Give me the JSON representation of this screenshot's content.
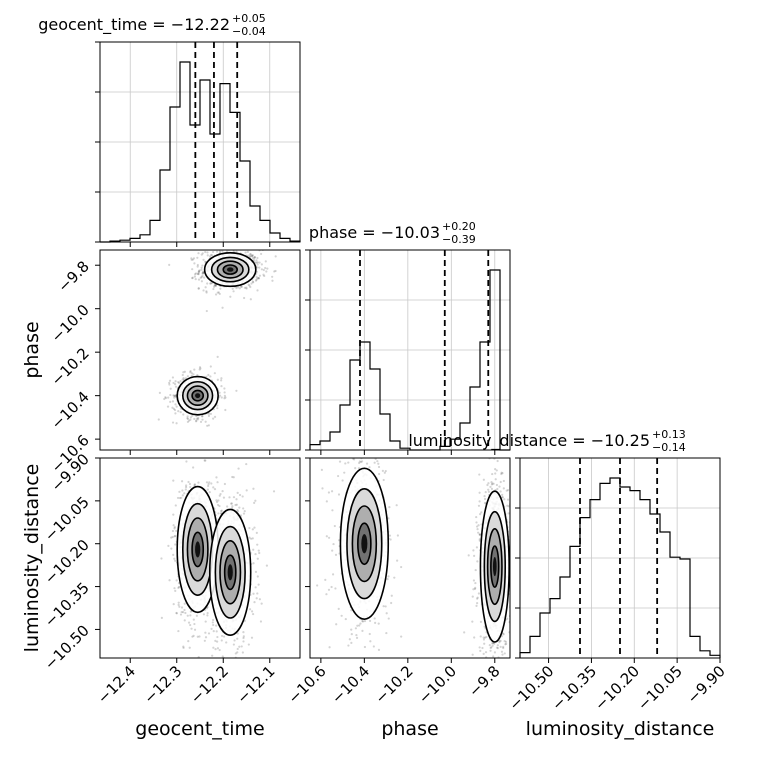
{
  "chart_data": {
    "type": "corner",
    "parameters": [
      "geocent_time",
      "phase",
      "luminosity_distance"
    ],
    "titles": [
      {
        "name": "geocent_time",
        "median": "−12.22",
        "plus": "+0.05",
        "minus": "−0.04"
      },
      {
        "name": "phase",
        "median": "−10.03",
        "plus": "+0.20",
        "minus": "−0.39"
      },
      {
        "name": "luminosity_distance",
        "median": "−10.25",
        "plus": "+0.13",
        "minus": "−0.14"
      }
    ],
    "ranges": {
      "geocent_time": [
        -12.465,
        -12.035
      ],
      "phase": [
        -10.65,
        -9.73
      ],
      "luminosity_distance": [
        -10.6,
        -9.9
      ]
    },
    "ticks": {
      "geocent_time": {
        "values": [
          -12.4,
          -12.3,
          -12.2,
          -12.1
        ],
        "labels": [
          "−12.4",
          "−12.3",
          "−12.2",
          "−12.1"
        ]
      },
      "phase": {
        "values": [
          -10.6,
          -10.4,
          -10.2,
          -10.0,
          -9.8
        ],
        "labels": [
          "−10.6",
          "−10.4",
          "−10.2",
          "−10.0",
          "−9.8"
        ]
      },
      "luminosity_distance": {
        "values": [
          -10.5,
          -10.35,
          -10.2,
          -10.05,
          -9.9
        ],
        "labels": [
          "−10.50",
          "−10.35",
          "−10.20",
          "−10.05",
          "−9.90"
        ]
      }
    },
    "quantiles": {
      "geocent_time": [
        -12.26,
        -12.22,
        -12.17
      ],
      "phase": [
        -10.42,
        -10.03,
        -9.83
      ],
      "luminosity_distance": [
        -10.39,
        -10.25,
        -10.12
      ]
    },
    "histograms": {
      "geocent_time": {
        "edges": [
          -12.465,
          -12.4435,
          -12.422,
          -12.4005,
          -12.379,
          -12.3575,
          -12.336,
          -12.3145,
          -12.293,
          -12.2715,
          -12.25,
          -12.2285,
          -12.207,
          -12.1855,
          -12.164,
          -12.1425,
          -12.121,
          -12.0995,
          -12.078,
          -12.0565,
          -12.035
        ],
        "counts": [
          0,
          0.005,
          0.01,
          0.02,
          0.04,
          0.12,
          0.4,
          0.75,
          1.0,
          0.65,
          0.9,
          0.6,
          0.88,
          0.72,
          0.45,
          0.2,
          0.12,
          0.05,
          0.02,
          0.005
        ]
      },
      "phase": {
        "edges": [
          -10.65,
          -10.604,
          -10.558,
          -10.512,
          -10.466,
          -10.42,
          -10.374,
          -10.328,
          -10.282,
          -10.236,
          -10.19,
          -10.144,
          -10.098,
          -10.052,
          -10.006,
          -9.96,
          -9.914,
          -9.868,
          -9.822,
          -9.776,
          -9.73
        ],
        "counts": [
          0.03,
          0.05,
          0.1,
          0.25,
          0.5,
          0.6,
          0.45,
          0.2,
          0.05,
          0.01,
          0,
          0,
          0,
          0.02,
          0.06,
          0.15,
          0.35,
          0.6,
          1.0,
          0
        ]
      },
      "luminosity_distance": {
        "edges": [
          -10.6,
          -10.565,
          -10.53,
          -10.495,
          -10.46,
          -10.425,
          -10.39,
          -10.355,
          -10.32,
          -10.285,
          -10.25,
          -10.215,
          -10.18,
          -10.145,
          -10.11,
          -10.075,
          -10.04,
          -10.005,
          -9.97,
          -9.935,
          -9.9
        ],
        "counts": [
          0.03,
          0.12,
          0.25,
          0.33,
          0.45,
          0.62,
          0.78,
          0.88,
          0.97,
          1.0,
          0.95,
          0.93,
          0.88,
          0.8,
          0.7,
          0.56,
          0.55,
          0.12,
          0.04,
          0.015
        ]
      }
    },
    "clusters": [
      {
        "x": "geocent_time",
        "y": "phase",
        "modes": [
          {
            "cx": -12.185,
            "cy": -9.82,
            "sx": 0.025,
            "sy": 0.035,
            "w": 0.6
          },
          {
            "cx": -12.255,
            "cy": -10.4,
            "sx": 0.02,
            "sy": 0.04,
            "w": 0.4
          }
        ]
      },
      {
        "x": "geocent_time",
        "y": "luminosity_distance",
        "modes": [
          {
            "cx": -12.255,
            "cy": -10.22,
            "sx": 0.02,
            "sy": 0.1,
            "w": 0.5
          },
          {
            "cx": -12.185,
            "cy": -10.3,
            "sx": 0.02,
            "sy": 0.1,
            "w": 0.5
          }
        ]
      },
      {
        "x": "phase",
        "y": "luminosity_distance",
        "modes": [
          {
            "cx": -10.4,
            "cy": -10.2,
            "sx": 0.05,
            "sy": 0.12,
            "w": 0.4
          },
          {
            "cx": -9.8,
            "cy": -10.28,
            "sx": 0.03,
            "sy": 0.12,
            "w": 0.6
          }
        ]
      }
    ],
    "grid": true
  }
}
